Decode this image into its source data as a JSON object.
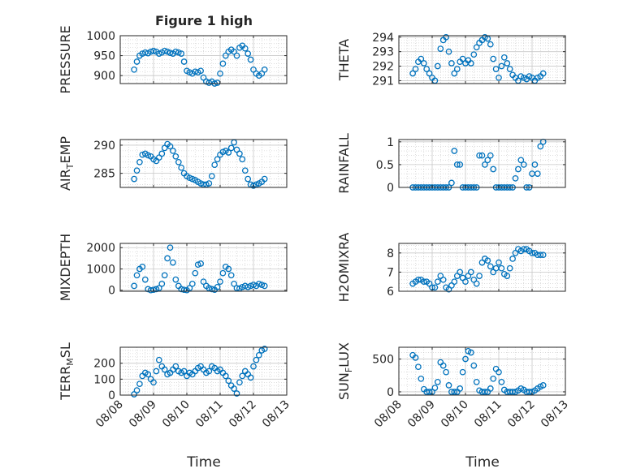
{
  "figure": {
    "title": "Figure 1 high",
    "xlabel": "Time"
  },
  "colors": {
    "marker": "#0072bd",
    "axis": "#262626",
    "grid": "#c8c8c8",
    "background": "#ffffff"
  },
  "chart_data": [
    {
      "type": "scatter",
      "panel": "top-left",
      "ylabel": "PRESSURE",
      "xlim": [
        "08/08",
        "08/13"
      ],
      "ylim": [
        880,
        1000
      ],
      "yticks": [
        "900",
        "950",
        "1000"
      ],
      "xtick_labels": [],
      "grid": "on",
      "x": [
        "08/08 10:00",
        "08/08 12:00",
        "08/08 14:00",
        "08/08 16:00",
        "08/08 18:00",
        "08/08 20:00",
        "08/08 22:00",
        "08/09 00:00",
        "08/09 02:00",
        "08/09 04:00",
        "08/09 06:00",
        "08/09 08:00",
        "08/09 10:00",
        "08/09 12:00",
        "08/09 14:00",
        "08/09 16:00",
        "08/09 18:00",
        "08/09 20:00",
        "08/09 22:00",
        "08/10 00:00",
        "08/10 02:00",
        "08/10 04:00",
        "08/10 06:00",
        "08/10 08:00",
        "08/10 10:00",
        "08/10 12:00",
        "08/10 14:00",
        "08/10 16:00",
        "08/10 18:00",
        "08/10 20:00",
        "08/10 22:00",
        "08/11 00:00",
        "08/11 02:00",
        "08/11 04:00",
        "08/11 06:00",
        "08/11 08:00",
        "08/11 10:00",
        "08/11 12:00",
        "08/11 14:00",
        "08/11 16:00",
        "08/11 18:00",
        "08/11 20:00",
        "08/11 22:00",
        "08/12 00:00",
        "08/12 02:00",
        "08/12 04:00",
        "08/12 06:00",
        "08/12 08:00"
      ],
      "y": [
        915,
        935,
        950,
        955,
        958,
        956,
        960,
        962,
        960,
        955,
        958,
        962,
        960,
        957,
        955,
        960,
        958,
        955,
        935,
        912,
        908,
        905,
        910,
        908,
        912,
        895,
        885,
        882,
        885,
        880,
        882,
        905,
        930,
        950,
        960,
        965,
        960,
        950,
        970,
        975,
        968,
        955,
        940,
        915,
        905,
        900,
        905,
        915
      ]
    },
    {
      "type": "scatter",
      "panel": "top-right",
      "ylabel": "THETA",
      "xlim": [
        "08/08",
        "08/13"
      ],
      "ylim": [
        290.8,
        294.1
      ],
      "yticks": [
        "291",
        "292",
        "293",
        "294"
      ],
      "xtick_labels": [],
      "grid": "on",
      "x": [
        "08/08 10:00",
        "08/08 12:00",
        "08/08 14:00",
        "08/08 16:00",
        "08/08 18:00",
        "08/08 20:00",
        "08/08 22:00",
        "08/09 00:00",
        "08/09 02:00",
        "08/09 04:00",
        "08/09 06:00",
        "08/09 08:00",
        "08/09 10:00",
        "08/09 12:00",
        "08/09 14:00",
        "08/09 16:00",
        "08/09 18:00",
        "08/09 20:00",
        "08/09 22:00",
        "08/10 00:00",
        "08/10 02:00",
        "08/10 04:00",
        "08/10 06:00",
        "08/10 08:00",
        "08/10 10:00",
        "08/10 12:00",
        "08/10 14:00",
        "08/10 16:00",
        "08/10 18:00",
        "08/10 20:00",
        "08/10 22:00",
        "08/11 00:00",
        "08/11 02:00",
        "08/11 04:00",
        "08/11 06:00",
        "08/11 08:00",
        "08/11 10:00",
        "08/11 12:00",
        "08/11 14:00",
        "08/11 16:00",
        "08/11 18:00",
        "08/11 20:00",
        "08/11 22:00",
        "08/12 00:00",
        "08/12 02:00",
        "08/12 04:00",
        "08/12 06:00",
        "08/12 08:00"
      ],
      "y": [
        291.5,
        291.8,
        292.3,
        292.5,
        292.2,
        291.8,
        291.5,
        291.2,
        291.0,
        292.0,
        293.2,
        293.8,
        294.0,
        293.0,
        292.2,
        291.5,
        291.8,
        292.3,
        292.5,
        292.2,
        292.4,
        292.2,
        292.8,
        293.3,
        293.6,
        293.8,
        294.0,
        293.9,
        293.5,
        292.5,
        291.8,
        291.2,
        292.0,
        292.6,
        292.2,
        291.8,
        291.4,
        291.2,
        291.0,
        291.3,
        291.2,
        291.1,
        291.3,
        291.2,
        291.0,
        291.2,
        291.3,
        291.5
      ]
    },
    {
      "type": "scatter",
      "panel": "middle-left",
      "ylabel": "AIR_TEMP",
      "xlim": [
        "08/08",
        "08/13"
      ],
      "ylim": [
        282.5,
        291
      ],
      "yticks": [
        "285",
        "290"
      ],
      "xtick_labels": [],
      "grid": "on",
      "x": [
        "08/08 10:00",
        "08/08 12:00",
        "08/08 14:00",
        "08/08 16:00",
        "08/08 18:00",
        "08/08 20:00",
        "08/08 22:00",
        "08/09 00:00",
        "08/09 02:00",
        "08/09 04:00",
        "08/09 06:00",
        "08/09 08:00",
        "08/09 10:00",
        "08/09 12:00",
        "08/09 14:00",
        "08/09 16:00",
        "08/09 18:00",
        "08/09 20:00",
        "08/09 22:00",
        "08/10 00:00",
        "08/10 02:00",
        "08/10 04:00",
        "08/10 06:00",
        "08/10 08:00",
        "08/10 10:00",
        "08/10 12:00",
        "08/10 14:00",
        "08/10 16:00",
        "08/10 18:00",
        "08/10 20:00",
        "08/10 22:00",
        "08/11 00:00",
        "08/11 02:00",
        "08/11 04:00",
        "08/11 06:00",
        "08/11 08:00",
        "08/11 10:00",
        "08/11 12:00",
        "08/11 14:00",
        "08/11 16:00",
        "08/11 18:00",
        "08/11 20:00",
        "08/11 22:00",
        "08/12 00:00",
        "08/12 02:00",
        "08/12 04:00",
        "08/12 06:00",
        "08/12 08:00"
      ],
      "y": [
        284.0,
        285.5,
        287.0,
        288.3,
        288.5,
        288.2,
        288.0,
        287.5,
        287.2,
        287.8,
        288.5,
        289.5,
        290.2,
        289.8,
        289.0,
        288.0,
        287.0,
        286.0,
        285.0,
        284.5,
        284.2,
        284.0,
        283.8,
        283.5,
        283.2,
        283.0,
        283.0,
        283.2,
        284.5,
        286.5,
        287.5,
        288.3,
        288.8,
        289.0,
        288.7,
        289.5,
        290.5,
        289.2,
        288.5,
        287.5,
        285.5,
        284.0,
        283.0,
        282.8,
        283.0,
        283.2,
        283.5,
        284.0
      ]
    },
    {
      "type": "scatter",
      "panel": "middle-right",
      "ylabel": "RAINFALL",
      "xlim": [
        "08/08",
        "08/13"
      ],
      "ylim": [
        0,
        1.05
      ],
      "yticks": [
        "0",
        "0.5",
        "1"
      ],
      "xtick_labels": [],
      "grid": "on",
      "x": [
        "08/08 10:00",
        "08/08 12:00",
        "08/08 14:00",
        "08/08 16:00",
        "08/08 18:00",
        "08/08 20:00",
        "08/08 22:00",
        "08/09 00:00",
        "08/09 02:00",
        "08/09 04:00",
        "08/09 06:00",
        "08/09 08:00",
        "08/09 10:00",
        "08/09 12:00",
        "08/09 14:00",
        "08/09 16:00",
        "08/09 18:00",
        "08/09 20:00",
        "08/09 22:00",
        "08/10 00:00",
        "08/10 02:00",
        "08/10 04:00",
        "08/10 06:00",
        "08/10 08:00",
        "08/10 10:00",
        "08/10 12:00",
        "08/10 14:00",
        "08/10 16:00",
        "08/10 18:00",
        "08/10 20:00",
        "08/10 22:00",
        "08/11 00:00",
        "08/11 02:00",
        "08/11 04:00",
        "08/11 06:00",
        "08/11 08:00",
        "08/11 10:00",
        "08/11 12:00",
        "08/11 14:00",
        "08/11 16:00",
        "08/11 18:00",
        "08/11 20:00",
        "08/11 22:00",
        "08/12 00:00",
        "08/12 02:00",
        "08/12 04:00",
        "08/12 06:00",
        "08/12 08:00"
      ],
      "y": [
        0,
        0,
        0,
        0,
        0,
        0,
        0,
        0,
        0,
        0,
        0,
        0,
        0,
        0,
        0.1,
        0.8,
        0.5,
        0.5,
        0,
        0,
        0,
        0,
        0,
        0,
        0.7,
        0.7,
        0.5,
        0.6,
        0.7,
        0.4,
        0,
        0,
        0,
        0,
        0,
        0,
        0,
        0.2,
        0.4,
        0.6,
        0.5,
        0,
        0,
        0.3,
        0.5,
        0.3,
        0.9,
        1.0
      ]
    },
    {
      "type": "scatter",
      "panel": "lower-left",
      "ylabel": "MIXDEPTH",
      "xlim": [
        "08/08",
        "08/13"
      ],
      "ylim": [
        -50,
        2200
      ],
      "yticks": [
        "0",
        "1000",
        "2000"
      ],
      "xtick_labels": [],
      "grid": "on",
      "x": [
        "08/08 10:00",
        "08/08 12:00",
        "08/08 14:00",
        "08/08 16:00",
        "08/08 18:00",
        "08/08 20:00",
        "08/08 22:00",
        "08/09 00:00",
        "08/09 02:00",
        "08/09 04:00",
        "08/09 06:00",
        "08/09 08:00",
        "08/09 10:00",
        "08/09 12:00",
        "08/09 14:00",
        "08/09 16:00",
        "08/09 18:00",
        "08/09 20:00",
        "08/09 22:00",
        "08/10 00:00",
        "08/10 02:00",
        "08/10 04:00",
        "08/10 06:00",
        "08/10 08:00",
        "08/10 10:00",
        "08/10 12:00",
        "08/10 14:00",
        "08/10 16:00",
        "08/10 18:00",
        "08/10 20:00",
        "08/10 22:00",
        "08/11 00:00",
        "08/11 02:00",
        "08/11 04:00",
        "08/11 06:00",
        "08/11 08:00",
        "08/11 10:00",
        "08/11 12:00",
        "08/11 14:00",
        "08/11 16:00",
        "08/11 18:00",
        "08/11 20:00",
        "08/11 22:00",
        "08/12 00:00",
        "08/12 02:00",
        "08/12 04:00",
        "08/12 06:00",
        "08/12 08:00"
      ],
      "y": [
        200,
        700,
        1000,
        1100,
        500,
        50,
        0,
        20,
        50,
        100,
        300,
        700,
        1500,
        2000,
        1300,
        500,
        200,
        50,
        20,
        0,
        100,
        300,
        800,
        1200,
        1250,
        400,
        200,
        100,
        50,
        20,
        150,
        400,
        800,
        1100,
        1000,
        700,
        300,
        100,
        80,
        150,
        200,
        150,
        200,
        250,
        200,
        300,
        250,
        200
      ]
    },
    {
      "type": "scatter",
      "panel": "lower-right",
      "ylabel": "H2OMIXRA",
      "xlim": [
        "08/08",
        "08/13"
      ],
      "ylim": [
        6,
        8.5
      ],
      "yticks": [
        "6",
        "7",
        "8"
      ],
      "xtick_labels": [],
      "grid": "on",
      "x": [
        "08/08 10:00",
        "08/08 12:00",
        "08/08 14:00",
        "08/08 16:00",
        "08/08 18:00",
        "08/08 20:00",
        "08/08 22:00",
        "08/09 00:00",
        "08/09 02:00",
        "08/09 04:00",
        "08/09 06:00",
        "08/09 08:00",
        "08/09 10:00",
        "08/09 12:00",
        "08/09 14:00",
        "08/09 16:00",
        "08/09 18:00",
        "08/09 20:00",
        "08/09 22:00",
        "08/10 00:00",
        "08/10 02:00",
        "08/10 04:00",
        "08/10 06:00",
        "08/10 08:00",
        "08/10 10:00",
        "08/10 12:00",
        "08/10 14:00",
        "08/10 16:00",
        "08/10 18:00",
        "08/10 20:00",
        "08/10 22:00",
        "08/11 00:00",
        "08/11 02:00",
        "08/11 04:00",
        "08/11 06:00",
        "08/11 08:00",
        "08/11 10:00",
        "08/11 12:00",
        "08/11 14:00",
        "08/11 16:00",
        "08/11 18:00",
        "08/11 20:00",
        "08/11 22:00",
        "08/12 00:00",
        "08/12 02:00",
        "08/12 04:00",
        "08/12 06:00",
        "08/12 08:00"
      ],
      "y": [
        6.4,
        6.5,
        6.6,
        6.6,
        6.5,
        6.5,
        6.4,
        6.2,
        6.2,
        6.5,
        6.8,
        6.6,
        6.2,
        6.1,
        6.3,
        6.5,
        6.8,
        7.0,
        6.7,
        6.5,
        6.8,
        7.0,
        6.6,
        6.4,
        6.8,
        7.5,
        7.7,
        7.6,
        7.3,
        7.0,
        7.2,
        7.5,
        7.2,
        6.9,
        6.8,
        7.2,
        7.7,
        8.0,
        8.2,
        8.1,
        8.2,
        8.2,
        8.1,
        8.0,
        8.0,
        7.9,
        7.9,
        7.9
      ]
    },
    {
      "type": "scatter",
      "panel": "bottom-left",
      "ylabel": "TERR_MSL",
      "xlim": [
        "08/08",
        "08/13"
      ],
      "ylim": [
        0,
        300
      ],
      "yticks": [
        "0",
        "100",
        "200"
      ],
      "xtick_labels": [
        "08/08",
        "08/09",
        "08/10",
        "08/11",
        "08/12",
        "08/13"
      ],
      "grid": "on",
      "x": [
        "08/08 10:00",
        "08/08 12:00",
        "08/08 14:00",
        "08/08 16:00",
        "08/08 18:00",
        "08/08 20:00",
        "08/08 22:00",
        "08/09 00:00",
        "08/09 02:00",
        "08/09 04:00",
        "08/09 06:00",
        "08/09 08:00",
        "08/09 10:00",
        "08/09 12:00",
        "08/09 14:00",
        "08/09 16:00",
        "08/09 18:00",
        "08/09 20:00",
        "08/09 22:00",
        "08/10 00:00",
        "08/10 02:00",
        "08/10 04:00",
        "08/10 06:00",
        "08/10 08:00",
        "08/10 10:00",
        "08/10 12:00",
        "08/10 14:00",
        "08/10 16:00",
        "08/10 18:00",
        "08/10 20:00",
        "08/10 22:00",
        "08/11 00:00",
        "08/11 02:00",
        "08/11 04:00",
        "08/11 06:00",
        "08/11 08:00",
        "08/11 10:00",
        "08/11 12:00",
        "08/11 14:00",
        "08/11 16:00",
        "08/11 18:00",
        "08/11 20:00",
        "08/11 22:00",
        "08/12 00:00",
        "08/12 02:00",
        "08/12 04:00",
        "08/12 06:00",
        "08/12 08:00"
      ],
      "y": [
        5,
        30,
        70,
        120,
        140,
        130,
        100,
        80,
        150,
        220,
        180,
        160,
        130,
        140,
        160,
        180,
        150,
        140,
        150,
        120,
        140,
        130,
        150,
        170,
        180,
        160,
        140,
        150,
        180,
        170,
        150,
        160,
        140,
        120,
        90,
        60,
        40,
        10,
        80,
        120,
        150,
        130,
        110,
        180,
        220,
        250,
        280,
        290
      ]
    },
    {
      "type": "scatter",
      "panel": "bottom-right",
      "ylabel": "SUN_FLUX",
      "xlim": [
        "08/08",
        "08/13"
      ],
      "ylim": [
        -50,
        680
      ],
      "yticks": [
        "0",
        "500"
      ],
      "xtick_labels": [
        "08/08",
        "08/09",
        "08/10",
        "08/11",
        "08/12",
        "08/13"
      ],
      "grid": "on",
      "x": [
        "08/08 10:00",
        "08/08 12:00",
        "08/08 14:00",
        "08/08 16:00",
        "08/08 18:00",
        "08/08 20:00",
        "08/08 22:00",
        "08/09 00:00",
        "08/09 02:00",
        "08/09 04:00",
        "08/09 06:00",
        "08/09 08:00",
        "08/09 10:00",
        "08/09 12:00",
        "08/09 14:00",
        "08/09 16:00",
        "08/09 18:00",
        "08/09 20:00",
        "08/09 22:00",
        "08/10 00:00",
        "08/10 02:00",
        "08/10 04:00",
        "08/10 06:00",
        "08/10 08:00",
        "08/10 10:00",
        "08/10 12:00",
        "08/10 14:00",
        "08/10 16:00",
        "08/10 18:00",
        "08/10 20:00",
        "08/10 22:00",
        "08/11 00:00",
        "08/11 02:00",
        "08/11 04:00",
        "08/11 06:00",
        "08/11 08:00",
        "08/11 10:00",
        "08/11 12:00",
        "08/11 14:00",
        "08/11 16:00",
        "08/11 18:00",
        "08/11 20:00",
        "08/11 22:00",
        "08/12 00:00",
        "08/12 02:00",
        "08/12 04:00",
        "08/12 06:00",
        "08/12 08:00"
      ],
      "y": [
        560,
        520,
        380,
        200,
        40,
        0,
        0,
        0,
        60,
        150,
        450,
        400,
        300,
        100,
        0,
        0,
        0,
        50,
        300,
        500,
        620,
        600,
        400,
        150,
        20,
        0,
        0,
        0,
        50,
        200,
        350,
        300,
        150,
        30,
        0,
        0,
        0,
        0,
        20,
        50,
        30,
        0,
        0,
        0,
        20,
        50,
        80,
        100
      ]
    }
  ]
}
